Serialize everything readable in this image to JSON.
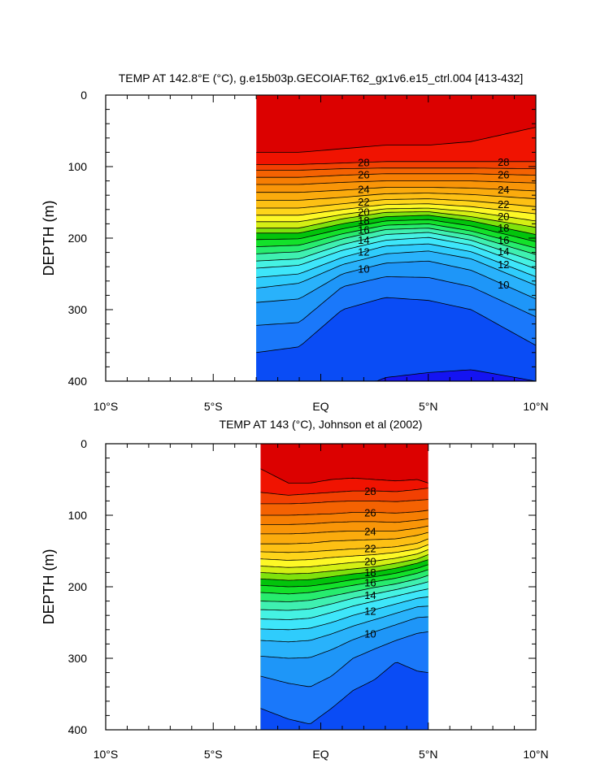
{
  "chart_data": [
    {
      "type": "contour",
      "title": "TEMP AT 142.8°E (°C), g.e15b03p.GECOIAF.T62_gx1v6.e15_ctrl.004 [413-432]",
      "ylabel": "DEPTH (m)",
      "xlim": [
        -10,
        10
      ],
      "ylim": [
        0,
        400
      ],
      "y_reversed": true,
      "x_ticks": [
        {
          "value": -10,
          "label": "10°S"
        },
        {
          "value": -5,
          "label": "5°S"
        },
        {
          "value": 0,
          "label": "EQ"
        },
        {
          "value": 5,
          "label": "5°N"
        },
        {
          "value": 10,
          "label": "10°N"
        }
      ],
      "y_ticks": [
        0,
        100,
        200,
        300,
        400
      ],
      "data_extent_x": [
        -3,
        10
      ],
      "contour_interval": 1,
      "labeled_levels": [
        28,
        26,
        24,
        22,
        20,
        18,
        16,
        14,
        12,
        10
      ],
      "x_samples": [
        -3,
        -1,
        1,
        3,
        5,
        7,
        10
      ],
      "isotherm_depths": {
        "29": [
          80,
          80,
          75,
          70,
          70,
          65,
          45
        ],
        "28": [
          97,
          97,
          95,
          93,
          93,
          93,
          93
        ],
        "27": [
          105,
          105,
          103,
          102,
          102,
          102,
          103
        ],
        "26": [
          115,
          115,
          112,
          110,
          110,
          110,
          112
        ],
        "25": [
          125,
          125,
          122,
          120,
          120,
          120,
          123
        ],
        "24": [
          136,
          136,
          133,
          129,
          129,
          130,
          134
        ],
        "23": [
          147,
          147,
          143,
          138,
          137,
          139,
          145
        ],
        "22": [
          158,
          158,
          152,
          146,
          145,
          148,
          156
        ],
        "21": [
          168,
          168,
          160,
          153,
          152,
          156,
          166
        ],
        "20": [
          177,
          177,
          167,
          159,
          158,
          163,
          176
        ],
        "19": [
          186,
          186,
          173,
          164,
          163,
          170,
          185
        ],
        "18": [
          193,
          193,
          180,
          170,
          168,
          176,
          195
        ],
        "17": [
          202,
          201,
          187,
          176,
          174,
          183,
          205
        ],
        "16": [
          212,
          210,
          194,
          182,
          180,
          190,
          214
        ],
        "15": [
          222,
          219,
          201,
          188,
          186,
          196,
          223
        ],
        "14": [
          232,
          229,
          209,
          195,
          192,
          203,
          233
        ],
        "13": [
          242,
          238,
          217,
          203,
          199,
          210,
          243
        ],
        "12": [
          255,
          250,
          227,
          211,
          208,
          219,
          254
        ],
        "11": [
          270,
          263,
          237,
          222,
          218,
          229,
          266
        ],
        "10": [
          290,
          285,
          250,
          235,
          232,
          245,
          285
        ],
        "9": [
          322,
          318,
          268,
          254,
          255,
          268,
          310
        ],
        "8": [
          360,
          352,
          300,
          283,
          287,
          300,
          350
        ],
        "7": [
          420,
          420,
          420,
          395,
          388,
          384,
          400
        ]
      }
    },
    {
      "type": "contour",
      "title": "TEMP AT 143 (°C), Johnson et al (2002)",
      "ylabel": "DEPTH (m)",
      "xlim": [
        -10,
        10
      ],
      "ylim": [
        0,
        400
      ],
      "y_reversed": true,
      "x_ticks": [
        {
          "value": -10,
          "label": "10°S"
        },
        {
          "value": -5,
          "label": "5°S"
        },
        {
          "value": 0,
          "label": "EQ"
        },
        {
          "value": 5,
          "label": "5°N"
        },
        {
          "value": 10,
          "label": "10°N"
        }
      ],
      "y_ticks": [
        0,
        100,
        200,
        300,
        400
      ],
      "data_extent_x": [
        -2.8,
        5
      ],
      "contour_interval": 1,
      "labeled_levels": [
        28,
        26,
        24,
        22,
        20,
        18,
        16,
        14,
        12,
        10
      ],
      "x_samples": [
        -2.8,
        -1.5,
        -0.5,
        0.5,
        1.5,
        2.5,
        3.5,
        4.5,
        5
      ],
      "isotherm_depths": {
        "29": [
          35,
          55,
          55,
          50,
          48,
          50,
          52,
          50,
          55
        ],
        "28": [
          68,
          72,
          70,
          68,
          66,
          66,
          67,
          64,
          62
        ],
        "27": [
          84,
          84,
          83,
          81,
          80,
          80,
          81,
          79,
          78
        ],
        "26": [
          100,
          100,
          99,
          98,
          96,
          96,
          97,
          95,
          93
        ],
        "25": [
          113,
          113,
          112,
          110,
          109,
          109,
          110,
          107,
          105
        ],
        "24": [
          126,
          126,
          125,
          123,
          122,
          122,
          122,
          118,
          115
        ],
        "23": [
          140,
          140,
          139,
          136,
          135,
          134,
          133,
          128,
          124
        ],
        "22": [
          151,
          152,
          151,
          149,
          147,
          146,
          144,
          139,
          133
        ],
        "21": [
          161,
          163,
          162,
          159,
          157,
          155,
          152,
          147,
          141
        ],
        "20": [
          171,
          173,
          172,
          169,
          166,
          164,
          160,
          154,
          148
        ],
        "19": [
          180,
          182,
          181,
          178,
          175,
          172,
          167,
          161,
          155
        ],
        "18": [
          189,
          191,
          190,
          186,
          182,
          179,
          174,
          167,
          162
        ],
        "17": [
          198,
          200,
          199,
          195,
          190,
          186,
          181,
          174,
          169
        ],
        "16": [
          208,
          210,
          208,
          203,
          198,
          193,
          188,
          181,
          176
        ],
        "15": [
          220,
          221,
          219,
          213,
          207,
          201,
          196,
          189,
          184
        ],
        "14": [
          232,
          233,
          231,
          224,
          216,
          210,
          204,
          197,
          193
        ],
        "13": [
          245,
          246,
          244,
          236,
          227,
          220,
          213,
          206,
          203
        ],
        "12": [
          259,
          260,
          258,
          250,
          240,
          232,
          224,
          216,
          214
        ],
        "11": [
          275,
          277,
          275,
          266,
          255,
          246,
          237,
          228,
          227
        ],
        "10": [
          297,
          300,
          299,
          288,
          274,
          263,
          253,
          243,
          242
        ],
        "9": [
          325,
          335,
          340,
          325,
          300,
          287,
          275,
          265,
          263
        ],
        "8": [
          370,
          385,
          392,
          370,
          345,
          330,
          305,
          318,
          320
        ],
        "7": [
          420,
          420,
          420,
          420,
          420,
          420,
          420,
          420,
          420
        ]
      }
    }
  ]
}
